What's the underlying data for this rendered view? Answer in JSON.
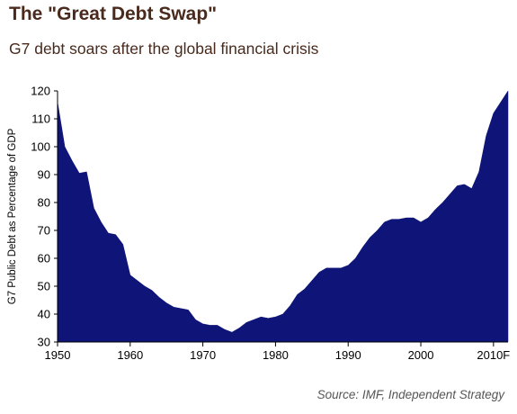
{
  "title": "The \"Great Debt Swap\"",
  "subtitle": "G7 debt soars after the global financial crisis",
  "source": "Source: IMF, Independent Strategy",
  "colors": {
    "fill": "#0f1578",
    "axis": "#000000",
    "title": "#4a2a1c",
    "source": "#555555"
  },
  "chart_data": {
    "type": "area",
    "title": "The \"Great Debt Swap\"",
    "subtitle": "G7 debt soars after the global financial crisis",
    "xlabel": "",
    "ylabel": "G7 Public Debt as Percentage of GDP",
    "xlim": [
      1950,
      2012
    ],
    "ylim": [
      30,
      120
    ],
    "x_ticks": [
      1950,
      1960,
      1970,
      1980,
      1990,
      2000,
      2010
    ],
    "x_tick_labels": [
      "1950",
      "1960",
      "1970",
      "1980",
      "1990",
      "2000",
      "2010F"
    ],
    "y_ticks": [
      30,
      40,
      50,
      60,
      70,
      80,
      90,
      100,
      110,
      120
    ],
    "y_tick_labels": [
      "30",
      "40",
      "50",
      "60",
      "70",
      "80",
      "90",
      "100",
      "110",
      "120"
    ],
    "grid": false,
    "legend": "none",
    "x": [
      1950,
      1951,
      1952,
      1953,
      1954,
      1955,
      1956,
      1957,
      1958,
      1959,
      1960,
      1961,
      1962,
      1963,
      1964,
      1965,
      1966,
      1967,
      1968,
      1969,
      1970,
      1971,
      1972,
      1973,
      1974,
      1975,
      1976,
      1977,
      1978,
      1979,
      1980,
      1981,
      1982,
      1983,
      1984,
      1985,
      1986,
      1987,
      1988,
      1989,
      1990,
      1991,
      1992,
      1993,
      1994,
      1995,
      1996,
      1997,
      1998,
      1999,
      2000,
      2001,
      2002,
      2003,
      2004,
      2005,
      2006,
      2007,
      2008,
      2009,
      2010,
      2011,
      2012
    ],
    "series": [
      {
        "values": [
          116,
          100,
          95,
          90.5,
          91,
          78,
          73,
          69,
          68.5,
          65,
          54,
          52,
          50,
          48.5,
          46,
          44,
          42.5,
          42,
          41.5,
          38,
          36.5,
          36,
          36,
          34.5,
          33.5,
          35,
          37,
          38,
          39,
          38.5,
          39,
          40,
          43,
          47,
          49,
          52,
          55,
          56.5,
          56.5,
          56.5,
          57.5,
          60,
          64,
          67.5,
          70,
          73,
          74,
          74,
          74.5,
          74.5,
          73,
          74.5,
          77.5,
          80,
          83,
          86,
          86.5,
          85,
          91,
          104,
          112,
          116,
          120
        ]
      }
    ]
  }
}
